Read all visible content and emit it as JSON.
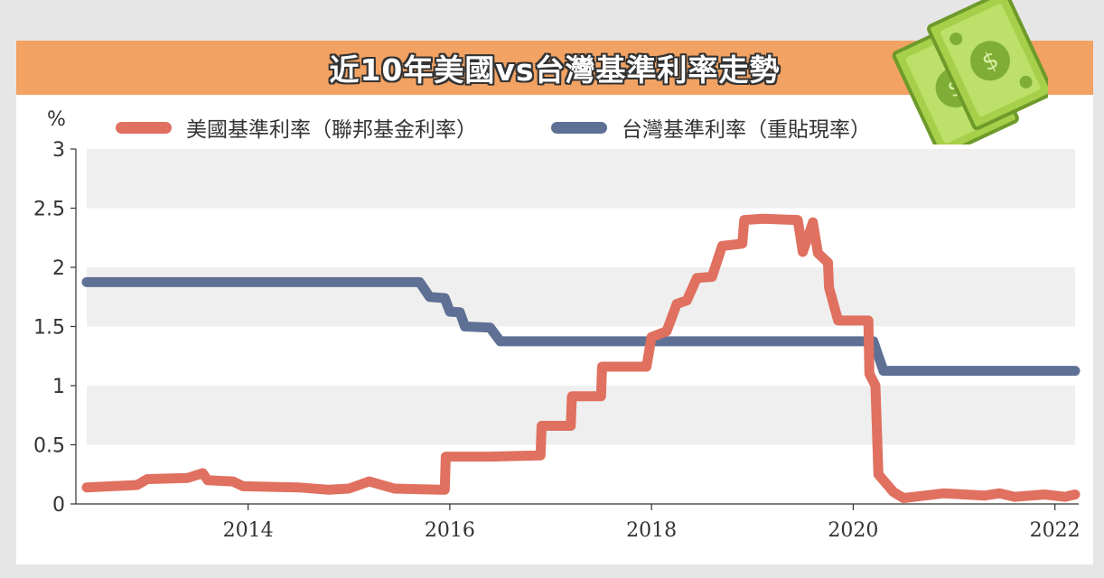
{
  "title": "近10年美國vs台灣基準利率走勢",
  "money_icon": "money-bills-icon",
  "chart_data": {
    "type": "line",
    "unit_label": "%",
    "ylim": [
      0,
      3
    ],
    "xlim": [
      2012.4,
      2022.2
    ],
    "y_ticks": [
      "3",
      "2.5",
      "2",
      "1.5",
      "1",
      "0.5",
      "0"
    ],
    "y_tick_values": [
      3,
      2.5,
      2,
      1.5,
      1,
      0.5,
      0
    ],
    "x_ticks": [
      "2014",
      "2016",
      "2018",
      "2020",
      "2022"
    ],
    "x_tick_values": [
      2014,
      2016,
      2018,
      2020,
      2022
    ],
    "grid": "alternating horizontal bands",
    "legend_position": "top",
    "series": [
      {
        "name": "美國基準利率（聯邦基金利率）",
        "color": "#e0705f",
        "points": [
          [
            2012.4,
            0.14
          ],
          [
            2012.9,
            0.16
          ],
          [
            2013.0,
            0.21
          ],
          [
            2013.4,
            0.22
          ],
          [
            2013.55,
            0.26
          ],
          [
            2013.6,
            0.2
          ],
          [
            2013.85,
            0.19
          ],
          [
            2013.95,
            0.15
          ],
          [
            2014.5,
            0.14
          ],
          [
            2014.8,
            0.12
          ],
          [
            2015.0,
            0.13
          ],
          [
            2015.2,
            0.19
          ],
          [
            2015.45,
            0.13
          ],
          [
            2015.9,
            0.12
          ],
          [
            2015.95,
            0.12
          ],
          [
            2015.96,
            0.4
          ],
          [
            2016.4,
            0.4
          ],
          [
            2016.9,
            0.41
          ],
          [
            2016.91,
            0.66
          ],
          [
            2017.2,
            0.66
          ],
          [
            2017.21,
            0.91
          ],
          [
            2017.5,
            0.91
          ],
          [
            2017.51,
            1.16
          ],
          [
            2017.95,
            1.16
          ],
          [
            2018.0,
            1.41
          ],
          [
            2018.15,
            1.46
          ],
          [
            2018.25,
            1.69
          ],
          [
            2018.35,
            1.72
          ],
          [
            2018.45,
            1.91
          ],
          [
            2018.6,
            1.92
          ],
          [
            2018.7,
            2.18
          ],
          [
            2018.9,
            2.2
          ],
          [
            2018.92,
            2.4
          ],
          [
            2019.1,
            2.41
          ],
          [
            2019.45,
            2.4
          ],
          [
            2019.5,
            2.13
          ],
          [
            2019.6,
            2.38
          ],
          [
            2019.65,
            2.12
          ],
          [
            2019.75,
            2.04
          ],
          [
            2019.76,
            1.83
          ],
          [
            2019.85,
            1.55
          ],
          [
            2020.15,
            1.55
          ],
          [
            2020.16,
            1.1
          ],
          [
            2020.22,
            1.0
          ],
          [
            2020.25,
            0.25
          ],
          [
            2020.4,
            0.1
          ],
          [
            2020.5,
            0.05
          ],
          [
            2020.9,
            0.09
          ],
          [
            2021.3,
            0.07
          ],
          [
            2021.45,
            0.09
          ],
          [
            2021.6,
            0.06
          ],
          [
            2021.9,
            0.08
          ],
          [
            2022.1,
            0.06
          ],
          [
            2022.2,
            0.08
          ]
        ]
      },
      {
        "name": "台灣基準利率（重貼現率）",
        "color": "#5f7095",
        "points": [
          [
            2012.4,
            1.875
          ],
          [
            2015.7,
            1.875
          ],
          [
            2015.8,
            1.75
          ],
          [
            2015.95,
            1.74
          ],
          [
            2016.0,
            1.625
          ],
          [
            2016.1,
            1.62
          ],
          [
            2016.15,
            1.5
          ],
          [
            2016.4,
            1.49
          ],
          [
            2016.5,
            1.375
          ],
          [
            2020.2,
            1.375
          ],
          [
            2020.3,
            1.125
          ],
          [
            2022.2,
            1.125
          ]
        ]
      }
    ]
  }
}
